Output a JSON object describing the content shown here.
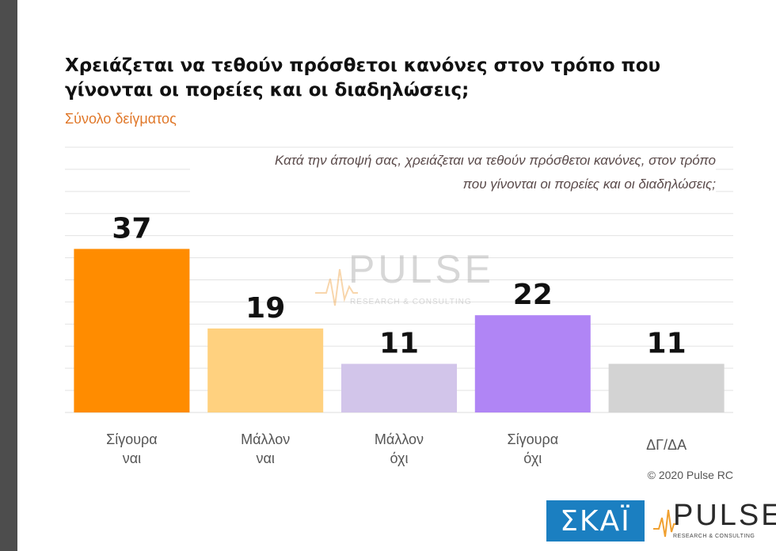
{
  "header": {
    "title": "Χρειάζεται να τεθούν πρόσθετοι κανόνες στον τρόπο που γίνονται οι πορείες και οι διαδηλώσεις;",
    "subtitle": "Σύνολο δείγματος"
  },
  "question": {
    "line1": "Κατά την άποψή σας, χρειάζεται να τεθούν πρόσθετοι κανόνες, στον τρόπο",
    "line2": "που γίνονται οι πορείες και οι διαδηλώσεις;"
  },
  "watermark": {
    "word": "PULSE",
    "tagline": "RESEARCH & CONSULTING"
  },
  "copyright": "© 2020 Pulse RC",
  "logos": {
    "skai": "ΣΚΑΪ",
    "pulse": "PULSE",
    "pulse_tagline": "RESEARCH & CONSULTING"
  },
  "chart_data": {
    "type": "bar",
    "categories": [
      [
        "Σίγουρα",
        "ναι"
      ],
      [
        "Μάλλον",
        "ναι"
      ],
      [
        "Μάλλον",
        "όχι"
      ],
      [
        "Σίγουρα",
        "όχι"
      ],
      [
        "ΔΓ/ΔΑ"
      ]
    ],
    "values": [
      37,
      19,
      11,
      22,
      11
    ],
    "colors": [
      "#ff8c00",
      "#ffd17f",
      "#d2c5ea",
      "#b085f5",
      "#d3d3d3"
    ],
    "ylim": [
      0,
      60
    ],
    "grid": true,
    "legend": "none"
  }
}
